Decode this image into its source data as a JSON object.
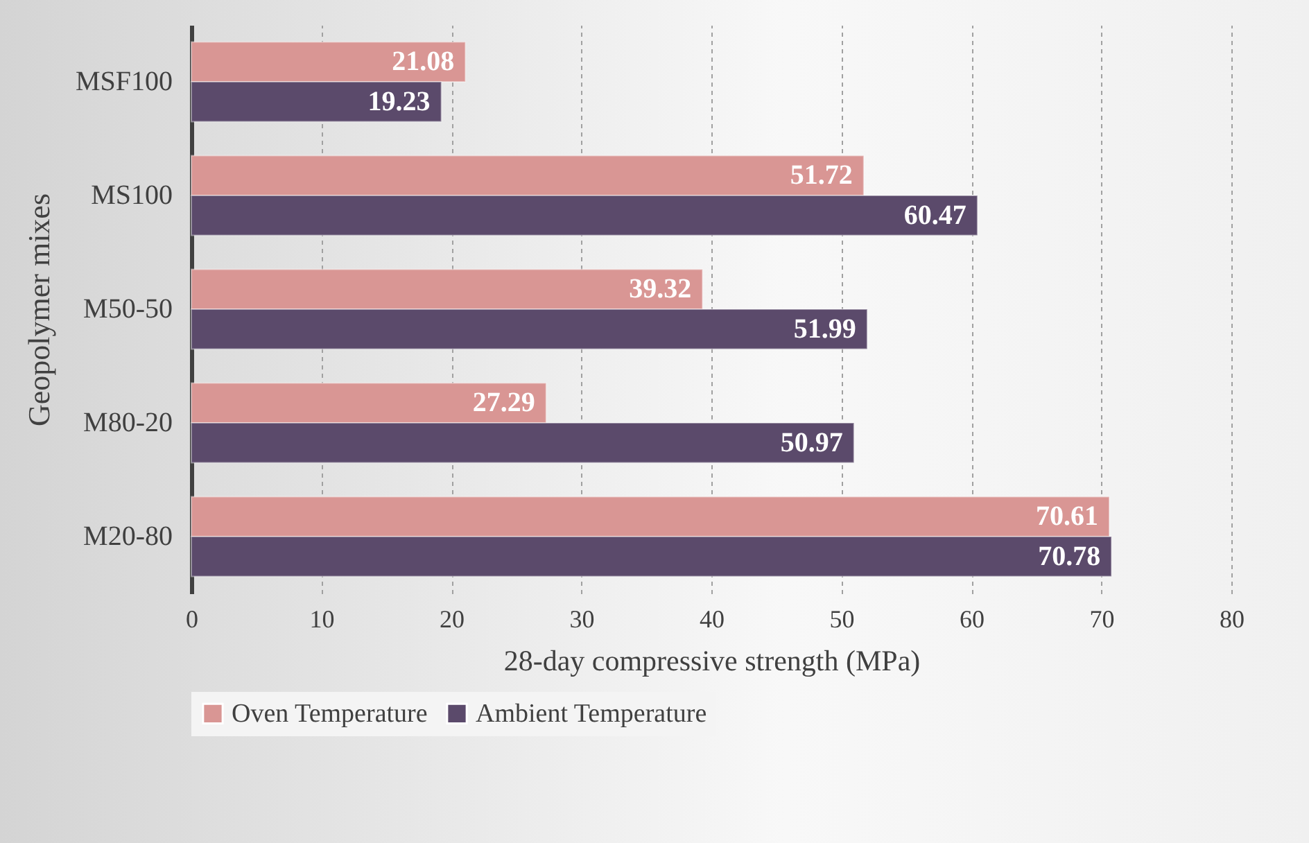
{
  "chart_data": {
    "type": "bar",
    "orientation": "horizontal",
    "categories": [
      "MSF100",
      "MS100",
      "M50-50",
      "M80-20",
      "M20-80"
    ],
    "series": [
      {
        "name": "Oven Temperature",
        "color": "#d99694",
        "values": [
          21.08,
          51.72,
          39.32,
          27.29,
          70.61
        ]
      },
      {
        "name": "Ambient Temperature",
        "color": "#5b4a6b",
        "values": [
          19.23,
          60.47,
          51.99,
          50.97,
          70.78
        ]
      }
    ],
    "xlim": [
      0,
      80
    ],
    "xticks": [
      0,
      10,
      20,
      30,
      40,
      50,
      60,
      70,
      80
    ],
    "xlabel": "28-day compressive strength (MPa)",
    "ylabel": "Geopolymer mixes",
    "grid": "x",
    "legend": "bottom",
    "data_labels": true
  }
}
